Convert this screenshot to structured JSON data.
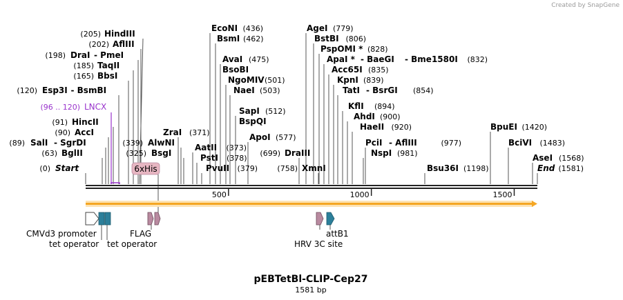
{
  "credit": "Created by SnapGene",
  "title": "pEBTetBl-CLIP-Cep27",
  "length_label": "1581 bp",
  "axis_ticks": [
    {
      "label": "500",
      "bp": 500
    },
    {
      "label": "1000",
      "bp": 1000
    },
    {
      "label": "1500",
      "bp": 1500
    }
  ],
  "enzymes": [
    {
      "id": "hindiii",
      "pos": "(205)",
      "name": "HindIII",
      "bp": 205
    },
    {
      "id": "afliii-202",
      "pos": "(202)",
      "name": "AflIII",
      "bp": 202
    },
    {
      "id": "drai",
      "pos": "(198)",
      "name": "DraI",
      "extra": "PmeI",
      "bp": 198
    },
    {
      "id": "taqii",
      "pos": "(185)",
      "name": "TaqII",
      "bp": 185
    },
    {
      "id": "bbsi",
      "pos": "(165)",
      "name": "BbsI",
      "bp": 165
    },
    {
      "id": "esp3i",
      "pos": "(120)",
      "name": "Esp3I",
      "extra": "BsmBI",
      "bp": 120
    },
    {
      "id": "hincii",
      "pos": "(91)",
      "name": "HincII",
      "bp": 91
    },
    {
      "id": "acci",
      "pos": "(90)",
      "name": "AccI",
      "bp": 90
    },
    {
      "id": "sali",
      "pos": "(89)",
      "name": "SalI",
      "extra": "SgrDI",
      "bp": 89
    },
    {
      "id": "bglii",
      "pos": "(63)",
      "name": "BglII",
      "bp": 63
    },
    {
      "id": "start",
      "pos": "(0)",
      "name": "Start",
      "italic": true,
      "bp": 0
    },
    {
      "id": "zrai",
      "pos": "(371)",
      "name": "ZraI",
      "bp": 371
    },
    {
      "id": "alwni",
      "pos": "(339)",
      "name": "AlwNI",
      "bp": 339
    },
    {
      "id": "bsgi",
      "pos": "(325)",
      "name": "BsgI",
      "bp": 325
    },
    {
      "id": "econi",
      "pos": "(436)",
      "name": "EcoNI",
      "bp": 436
    },
    {
      "id": "bsmi",
      "pos": "(462)",
      "name": "BsmI",
      "bp": 462
    },
    {
      "id": "avai",
      "pos": "(475)",
      "name": "AvaI",
      "bp": 475
    },
    {
      "id": "bsobi",
      "name": "BsoBI",
      "bp": 475
    },
    {
      "id": "ngomiv",
      "pos": "(501)",
      "name": "NgoMIV",
      "bp": 501
    },
    {
      "id": "naei",
      "pos": "(503)",
      "name": "NaeI",
      "bp": 503
    },
    {
      "id": "sapi",
      "pos": "(512)",
      "name": "SapI",
      "bp": 512
    },
    {
      "id": "bspqi",
      "name": "BspQI",
      "bp": 512
    },
    {
      "id": "apoi",
      "pos": "(577)",
      "name": "ApoI",
      "bp": 577
    },
    {
      "id": "aatii",
      "pos": "(373)",
      "name": "AatII",
      "bp": 373
    },
    {
      "id": "psti",
      "pos": "(378)",
      "name": "PstI",
      "bp": 378
    },
    {
      "id": "pvuii",
      "pos": "(379)",
      "name": "PvuII",
      "bp": 379
    },
    {
      "id": "agei",
      "pos": "(779)",
      "name": "AgeI",
      "bp": 779
    },
    {
      "id": "bstbi",
      "pos": "(806)",
      "name": "BstBI",
      "bp": 806
    },
    {
      "id": "pspomi",
      "pos": "(828)",
      "name": "PspOMI *",
      "bp": 828
    },
    {
      "id": "apai",
      "pos": "(832)",
      "name": "ApaI *",
      "extra": "BaeGI",
      "extra2": "Bme1580I",
      "bp": 832
    },
    {
      "id": "acc65i",
      "pos": "(835)",
      "name": "Acc65I",
      "bp": 835
    },
    {
      "id": "kpni",
      "pos": "(839)",
      "name": "KpnI",
      "bp": 839
    },
    {
      "id": "tati",
      "pos": "(854)",
      "name": "TatI",
      "extra": "BsrGI",
      "bp": 854
    },
    {
      "id": "kfli",
      "pos": "(894)",
      "name": "KflI",
      "bp": 894
    },
    {
      "id": "ahdi",
      "pos": "(900)",
      "name": "AhdI",
      "bp": 900
    },
    {
      "id": "haeii",
      "pos": "(920)",
      "name": "HaeII",
      "bp": 920
    },
    {
      "id": "pcii",
      "pos": "(977)",
      "name": "PciI",
      "extra": "AflIII",
      "bp": 977
    },
    {
      "id": "nspi",
      "pos": "(981)",
      "name": "NspI",
      "bp": 981
    },
    {
      "id": "draiii",
      "pos": "(699)",
      "name": "DraIII",
      "bp": 699
    },
    {
      "id": "xmni",
      "pos": "(758)",
      "name": "XmnI",
      "bp": 758
    },
    {
      "id": "bsu36i",
      "pos": "(1198)",
      "name": "Bsu36I",
      "bp": 1198
    },
    {
      "id": "bpuei",
      "pos": "(1420)",
      "name": "BpuEI",
      "bp": 1420
    },
    {
      "id": "bcivi",
      "pos": "(1483)",
      "name": "BciVI",
      "bp": 1483
    },
    {
      "id": "asei",
      "pos": "(1568)",
      "name": "AseI",
      "bp": 1568
    },
    {
      "id": "end",
      "pos": "(1581)",
      "name": "End",
      "italic": true,
      "bp": 1581
    }
  ],
  "region_label": {
    "range": "(96 .. 120)",
    "name": "LNCX",
    "color": "#9933cc"
  },
  "his_tag": {
    "label": "6xHis",
    "color": "#e7b6c2"
  },
  "orf_color": "#f5a623",
  "features": [
    {
      "id": "cmvd3",
      "label": "CMVd3 promoter",
      "color": "#ffffff"
    },
    {
      "id": "tet1",
      "label": "tet operator",
      "color": "#2c7f9a"
    },
    {
      "id": "tet2",
      "label": "tet operator",
      "color": "#2c7f9a"
    },
    {
      "id": "flag",
      "label": "FLAG",
      "color": "#b98aa0"
    },
    {
      "id": "hrv3c",
      "label": "HRV 3C site",
      "color": "#b98aa0"
    },
    {
      "id": "attb1",
      "label": "attB1",
      "color": "#2c7f9a"
    }
  ]
}
